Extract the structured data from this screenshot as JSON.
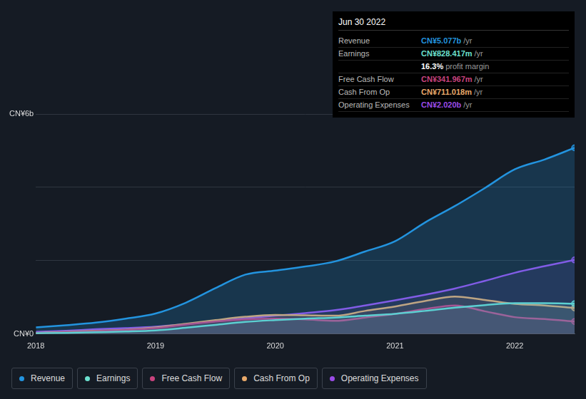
{
  "chart_data": {
    "type": "line",
    "x": [
      2018,
      2018.25,
      2018.5,
      2018.75,
      2019,
      2019.25,
      2019.5,
      2019.75,
      2020,
      2020.25,
      2020.5,
      2020.75,
      2021,
      2021.25,
      2021.5,
      2021.75,
      2022,
      2022.25,
      2022.5
    ],
    "series": [
      {
        "name": "Revenue",
        "color": "#2394df",
        "values": [
          0.18,
          0.24,
          0.31,
          0.42,
          0.56,
          0.85,
          1.25,
          1.62,
          1.73,
          1.84,
          1.98,
          2.25,
          2.53,
          3.04,
          3.49,
          3.98,
          4.49,
          4.76,
          5.077
        ]
      },
      {
        "name": "Earnings",
        "color": "#6ce0cf",
        "values": [
          0.02,
          0.03,
          0.05,
          0.07,
          0.1,
          0.17,
          0.25,
          0.33,
          0.38,
          0.42,
          0.45,
          0.5,
          0.55,
          0.63,
          0.72,
          0.79,
          0.84,
          0.84,
          0.828
        ]
      },
      {
        "name": "Free Cash Flow",
        "color": "#c9437e",
        "values": [
          0.02,
          0.05,
          0.08,
          0.11,
          0.16,
          0.26,
          0.34,
          0.4,
          0.42,
          0.4,
          0.36,
          0.45,
          0.55,
          0.68,
          0.78,
          0.62,
          0.46,
          0.41,
          0.342
        ]
      },
      {
        "name": "Cash From Op",
        "color": "#e9a96a",
        "values": [
          0.03,
          0.06,
          0.09,
          0.12,
          0.18,
          0.28,
          0.38,
          0.47,
          0.52,
          0.51,
          0.5,
          0.63,
          0.75,
          0.9,
          1.02,
          0.93,
          0.82,
          0.78,
          0.711
        ]
      },
      {
        "name": "Operating Expenses",
        "color": "#9b4ce8",
        "values": [
          0.06,
          0.09,
          0.13,
          0.16,
          0.2,
          0.27,
          0.35,
          0.43,
          0.5,
          0.57,
          0.65,
          0.78,
          0.92,
          1.07,
          1.24,
          1.45,
          1.67,
          1.85,
          2.02
        ]
      }
    ],
    "xlim": [
      2018,
      2022.5
    ],
    "xticks": [
      2018,
      2019,
      2020,
      2021,
      2022
    ],
    "ylim": [
      0,
      6
    ],
    "yticks": [
      {
        "value": 0,
        "label": "CN¥0"
      },
      {
        "value": 2,
        "label": null
      },
      {
        "value": 4,
        "label": null
      },
      {
        "value": 6,
        "label": "CN¥6b"
      }
    ],
    "grid": true,
    "legend": "bottom",
    "annotations": {
      "title": "Jun 30 2022",
      "rows": [
        {
          "label": "Revenue",
          "value": "CN¥5.077b",
          "suffix": "/yr"
        },
        {
          "label": "Earnings",
          "value": "CN¥828.417m",
          "suffix": "/yr"
        },
        {
          "label": null,
          "value": "16.3%",
          "suffix": "profit margin"
        },
        {
          "label": "Free Cash Flow",
          "value": "CN¥341.967m",
          "suffix": "/yr"
        },
        {
          "label": "Cash From Op",
          "value": "CN¥711.018m",
          "suffix": "/yr"
        },
        {
          "label": "Operating Expenses",
          "value": "CN¥2.020b",
          "suffix": "/yr"
        }
      ]
    }
  }
}
